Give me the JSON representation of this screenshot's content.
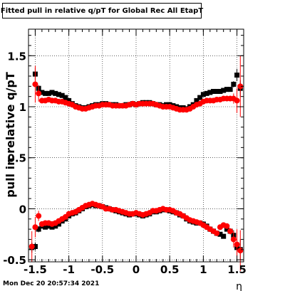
{
  "title": "Fitted pull in relative q/pT for Global Rec All EtapT",
  "timestamp": "Mon Dec 20 20:57:34 2021",
  "chart_data": {
    "type": "scatter",
    "xlabel": "η",
    "ylabel": "pull in relative q/pT",
    "xlim": [
      -1.6,
      1.6
    ],
    "ylim": [
      -0.52,
      1.76
    ],
    "grid": true,
    "x_ticks": [
      {
        "v": -1.5,
        "t": "-1.5"
      },
      {
        "v": -1,
        "t": "-1"
      },
      {
        "v": -0.5,
        "t": "-0.5"
      },
      {
        "v": 0,
        "t": "0"
      },
      {
        "v": 0.5,
        "t": "0.5"
      },
      {
        "v": 1,
        "t": "1"
      },
      {
        "v": 1.5,
        "t": "1.5"
      }
    ],
    "y_ticks": [
      {
        "v": -0.5,
        "t": "-0.5"
      },
      {
        "v": 0,
        "t": "0"
      },
      {
        "v": 0.5,
        "t": "0.5"
      },
      {
        "v": 1,
        "t": "1"
      },
      {
        "v": 1.5,
        "t": "1.5"
      }
    ],
    "series": [
      {
        "marker": "square",
        "color": "#000000",
        "x": [
          -1.5,
          -1.45,
          -1.4,
          -1.35,
          -1.3,
          -1.25,
          -1.2,
          -1.15,
          -1.1,
          -1.05,
          -1.0,
          -0.95,
          -0.9,
          -0.85,
          -0.8,
          -0.75,
          -0.7,
          -0.65,
          -0.6,
          -0.55,
          -0.5,
          -0.45,
          -0.4,
          -0.35,
          -0.3,
          -0.25,
          -0.2,
          -0.15,
          -0.1,
          -0.05,
          0,
          0.05,
          0.1,
          0.15,
          0.2,
          0.25,
          0.3,
          0.35,
          0.4,
          0.45,
          0.5,
          0.55,
          0.6,
          0.65,
          0.7,
          0.75,
          0.8,
          0.85,
          0.9,
          0.95,
          1.0,
          1.05,
          1.1,
          1.15,
          1.2,
          1.25,
          1.3,
          1.35,
          1.4,
          1.45,
          1.5,
          1.55
        ],
        "y": [
          1.32,
          1.18,
          1.14,
          1.13,
          1.13,
          1.14,
          1.13,
          1.12,
          1.11,
          1.09,
          1.06,
          1.03,
          1.01,
          1.0,
          0.99,
          0.99,
          1.0,
          1.01,
          1.02,
          1.02,
          1.03,
          1.03,
          1.02,
          1.02,
          1.02,
          1.01,
          1.01,
          1.02,
          1.02,
          1.03,
          1.02,
          1.03,
          1.04,
          1.04,
          1.04,
          1.03,
          1.02,
          1.02,
          1.01,
          1.02,
          1.02,
          1.01,
          1.0,
          0.99,
          0.99,
          0.98,
          1.0,
          1.02,
          1.06,
          1.09,
          1.12,
          1.13,
          1.14,
          1.15,
          1.15,
          1.15,
          1.16,
          1.17,
          1.17,
          1.22,
          1.31,
          1.18
        ],
        "yerr": [
          0.06,
          0.03,
          0.015,
          0.01,
          0.01,
          0.01,
          0.01,
          0.01,
          0.01,
          0.01,
          0.01,
          0.01,
          0.01,
          0.01,
          0.01,
          0.01,
          0.01,
          0.01,
          0.01,
          0.01,
          0.01,
          0.01,
          0.01,
          0.01,
          0.01,
          0.01,
          0.01,
          0.01,
          0.01,
          0.01,
          0.01,
          0.01,
          0.01,
          0.01,
          0.01,
          0.01,
          0.01,
          0.01,
          0.01,
          0.01,
          0.01,
          0.01,
          0.01,
          0.01,
          0.01,
          0.01,
          0.01,
          0.01,
          0.01,
          0.01,
          0.01,
          0.01,
          0.01,
          0.01,
          0.01,
          0.01,
          0.01,
          0.01,
          0.015,
          0.03,
          0.06,
          0.08
        ]
      },
      {
        "marker": "circle",
        "color": "#ff0000",
        "x": [
          -1.5,
          -1.45,
          -1.4,
          -1.35,
          -1.3,
          -1.25,
          -1.2,
          -1.15,
          -1.1,
          -1.05,
          -1.0,
          -0.95,
          -0.9,
          -0.85,
          -0.8,
          -0.75,
          -0.7,
          -0.65,
          -0.6,
          -0.55,
          -0.5,
          -0.45,
          -0.4,
          -0.35,
          -0.3,
          -0.25,
          -0.2,
          -0.15,
          -0.1,
          -0.05,
          0,
          0.05,
          0.1,
          0.15,
          0.2,
          0.25,
          0.3,
          0.35,
          0.4,
          0.45,
          0.5,
          0.55,
          0.6,
          0.65,
          0.7,
          0.75,
          0.8,
          0.85,
          0.9,
          0.95,
          1.0,
          1.05,
          1.1,
          1.15,
          1.2,
          1.25,
          1.3,
          1.35,
          1.4,
          1.45,
          1.5,
          1.55
        ],
        "y": [
          1.22,
          1.13,
          1.06,
          1.06,
          1.07,
          1.06,
          1.06,
          1.05,
          1.05,
          1.04,
          1.03,
          1.02,
          1.0,
          0.99,
          0.98,
          0.98,
          0.99,
          1.0,
          1.01,
          1.01,
          1.02,
          1.02,
          1.02,
          1.01,
          1.01,
          1.01,
          1.01,
          1.01,
          1.02,
          1.03,
          1.02,
          1.03,
          1.03,
          1.03,
          1.03,
          1.03,
          1.02,
          1.01,
          1.0,
          1.0,
          1.0,
          0.99,
          0.98,
          0.97,
          0.97,
          0.97,
          0.98,
          1.0,
          1.02,
          1.03,
          1.05,
          1.06,
          1.06,
          1.06,
          1.07,
          1.07,
          1.08,
          1.08,
          1.08,
          1.08,
          1.06,
          1.2
        ],
        "yerr": [
          0.18,
          0.08,
          0.02,
          0.01,
          0.01,
          0.01,
          0.01,
          0.01,
          0.01,
          0.01,
          0.01,
          0.01,
          0.01,
          0.01,
          0.01,
          0.01,
          0.01,
          0.01,
          0.01,
          0.01,
          0.01,
          0.01,
          0.01,
          0.01,
          0.01,
          0.01,
          0.01,
          0.01,
          0.01,
          0.01,
          0.01,
          0.01,
          0.01,
          0.01,
          0.01,
          0.01,
          0.01,
          0.01,
          0.01,
          0.01,
          0.01,
          0.01,
          0.01,
          0.01,
          0.01,
          0.01,
          0.01,
          0.01,
          0.01,
          0.01,
          0.01,
          0.01,
          0.01,
          0.01,
          0.01,
          0.01,
          0.01,
          0.01,
          0.02,
          0.05,
          0.12,
          0.3
        ]
      },
      {
        "marker": "square",
        "color": "#000000",
        "x": [
          -1.55,
          -1.5,
          -1.45,
          -1.4,
          -1.35,
          -1.3,
          -1.25,
          -1.2,
          -1.15,
          -1.1,
          -1.05,
          -1.0,
          -0.95,
          -0.9,
          -0.85,
          -0.8,
          -0.75,
          -0.7,
          -0.65,
          -0.6,
          -0.55,
          -0.5,
          -0.45,
          -0.4,
          -0.35,
          -0.3,
          -0.25,
          -0.2,
          -0.15,
          -0.1,
          -0.05,
          0,
          0.05,
          0.1,
          0.15,
          0.2,
          0.25,
          0.3,
          0.35,
          0.4,
          0.45,
          0.5,
          0.55,
          0.6,
          0.65,
          0.7,
          0.75,
          0.8,
          0.85,
          0.9,
          0.95,
          1.0,
          1.05,
          1.1,
          1.15,
          1.2,
          1.25,
          1.3,
          1.35,
          1.4,
          1.45,
          1.5,
          1.55
        ],
        "y": [
          -0.38,
          -0.37,
          -0.2,
          -0.17,
          -0.18,
          -0.17,
          -0.18,
          -0.17,
          -0.15,
          -0.12,
          -0.1,
          -0.07,
          -0.05,
          -0.04,
          -0.02,
          0.0,
          0.02,
          0.03,
          0.04,
          0.03,
          0.03,
          0.02,
          0.01,
          0.0,
          -0.01,
          -0.02,
          -0.03,
          -0.04,
          -0.05,
          -0.06,
          -0.05,
          -0.05,
          -0.06,
          -0.07,
          -0.06,
          -0.05,
          -0.03,
          -0.03,
          -0.02,
          -0.01,
          -0.01,
          -0.02,
          -0.03,
          -0.04,
          -0.06,
          -0.07,
          -0.1,
          -0.12,
          -0.13,
          -0.14,
          -0.14,
          -0.15,
          -0.17,
          -0.2,
          -0.22,
          -0.24,
          -0.25,
          -0.27,
          -0.2,
          -0.22,
          -0.26,
          -0.38,
          -0.4
        ],
        "yerr": [
          0.05,
          0.04,
          0.03,
          0.02,
          0.01,
          0.01,
          0.01,
          0.01,
          0.01,
          0.01,
          0.01,
          0.01,
          0.01,
          0.01,
          0.01,
          0.01,
          0.01,
          0.01,
          0.01,
          0.01,
          0.01,
          0.01,
          0.01,
          0.01,
          0.01,
          0.01,
          0.01,
          0.01,
          0.01,
          0.01,
          0.01,
          0.01,
          0.01,
          0.01,
          0.01,
          0.01,
          0.01,
          0.01,
          0.01,
          0.01,
          0.01,
          0.01,
          0.01,
          0.01,
          0.01,
          0.01,
          0.01,
          0.01,
          0.01,
          0.01,
          0.01,
          0.01,
          0.01,
          0.01,
          0.01,
          0.01,
          0.01,
          0.01,
          0.02,
          0.03,
          0.05,
          0.08,
          0.1
        ]
      },
      {
        "marker": "circle",
        "color": "#ff0000",
        "x": [
          -1.55,
          -1.5,
          -1.45,
          -1.4,
          -1.35,
          -1.3,
          -1.25,
          -1.2,
          -1.15,
          -1.1,
          -1.05,
          -1.0,
          -0.95,
          -0.9,
          -0.85,
          -0.8,
          -0.75,
          -0.7,
          -0.65,
          -0.6,
          -0.55,
          -0.5,
          -0.45,
          -0.4,
          -0.35,
          -0.3,
          -0.25,
          -0.2,
          -0.15,
          -0.1,
          -0.05,
          0,
          0.05,
          0.1,
          0.15,
          0.2,
          0.25,
          0.3,
          0.35,
          0.4,
          0.45,
          0.5,
          0.55,
          0.6,
          0.65,
          0.7,
          0.75,
          0.8,
          0.85,
          0.9,
          0.95,
          1.0,
          1.05,
          1.1,
          1.15,
          1.2,
          1.25,
          1.3,
          1.35,
          1.4,
          1.45,
          1.5,
          1.55
        ],
        "y": [
          -0.37,
          -0.18,
          -0.07,
          -0.15,
          -0.14,
          -0.14,
          -0.15,
          -0.14,
          -0.12,
          -0.1,
          -0.08,
          -0.05,
          -0.04,
          -0.03,
          -0.01,
          0.01,
          0.03,
          0.04,
          0.05,
          0.04,
          0.03,
          0.02,
          0.0,
          0.0,
          -0.01,
          -0.01,
          -0.02,
          -0.03,
          -0.04,
          -0.05,
          -0.05,
          -0.04,
          -0.05,
          -0.06,
          -0.05,
          -0.04,
          -0.02,
          -0.02,
          -0.01,
          0.0,
          -0.01,
          -0.01,
          -0.02,
          -0.04,
          -0.05,
          -0.07,
          -0.09,
          -0.11,
          -0.12,
          -0.13,
          -0.14,
          -0.16,
          -0.18,
          -0.2,
          -0.22,
          -0.24,
          -0.18,
          -0.16,
          -0.17,
          -0.22,
          -0.3,
          -0.35,
          -0.41
        ],
        "yerr": [
          0.15,
          0.1,
          0.05,
          0.02,
          0.01,
          0.01,
          0.01,
          0.01,
          0.01,
          0.01,
          0.01,
          0.01,
          0.01,
          0.01,
          0.01,
          0.01,
          0.01,
          0.01,
          0.01,
          0.01,
          0.01,
          0.01,
          0.01,
          0.01,
          0.01,
          0.01,
          0.01,
          0.01,
          0.01,
          0.01,
          0.01,
          0.01,
          0.01,
          0.01,
          0.01,
          0.01,
          0.01,
          0.01,
          0.01,
          0.01,
          0.01,
          0.01,
          0.01,
          0.01,
          0.01,
          0.01,
          0.01,
          0.01,
          0.01,
          0.01,
          0.01,
          0.01,
          0.01,
          0.01,
          0.01,
          0.01,
          0.01,
          0.02,
          0.02,
          0.03,
          0.08,
          0.15,
          0.2
        ]
      }
    ]
  }
}
